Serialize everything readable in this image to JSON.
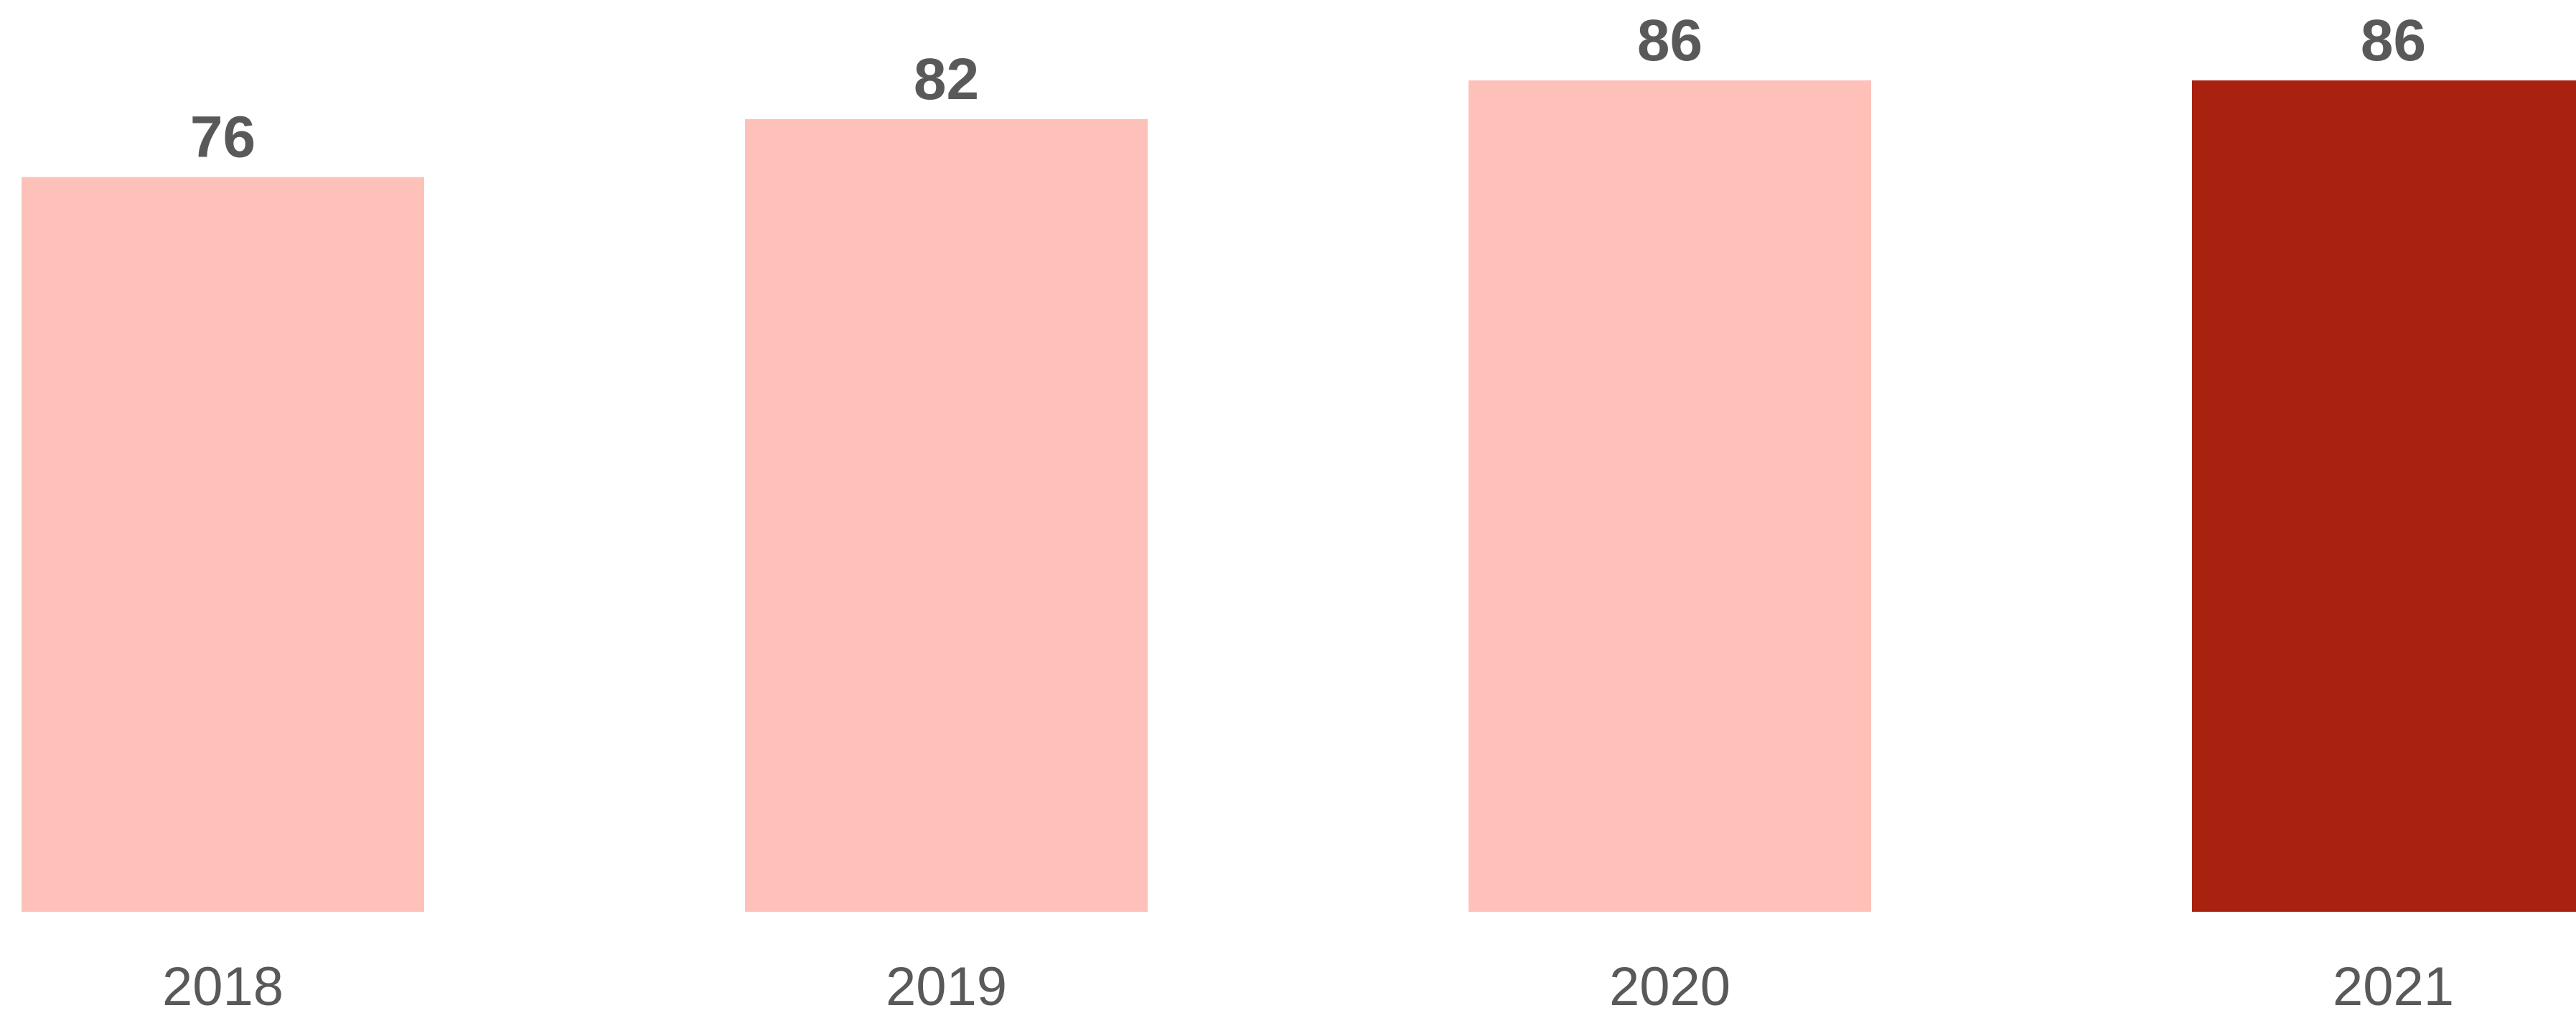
{
  "chart_data": {
    "type": "bar",
    "categories": [
      "2018",
      "2019",
      "2020",
      "2021"
    ],
    "values": [
      76,
      82,
      86,
      86
    ],
    "colors": [
      "#fec1b9",
      "#fec1b9",
      "#fec1b9",
      "#a8220f"
    ]
  }
}
